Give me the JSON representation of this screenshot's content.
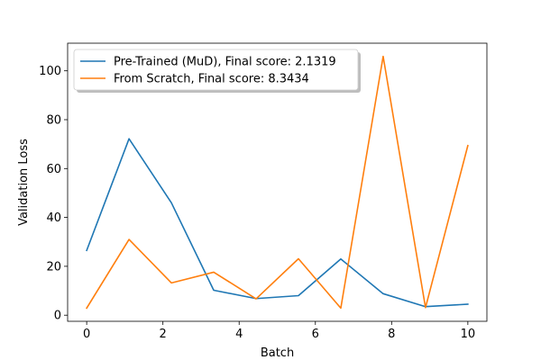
{
  "chart_data": {
    "type": "line",
    "title": "",
    "xlabel": "Batch",
    "ylabel": "Validation Loss",
    "xlim": [
      -0.5,
      10.5
    ],
    "ylim": [
      -2.5,
      111.3
    ],
    "xticks": [
      0,
      2,
      4,
      6,
      8,
      10
    ],
    "yticks": [
      0,
      20,
      40,
      60,
      80,
      100
    ],
    "xtick_labels": [
      "0",
      "2",
      "4",
      "6",
      "8",
      "10"
    ],
    "ytick_labels": [
      "0",
      "20",
      "40",
      "60",
      "80",
      "100"
    ],
    "grid": false,
    "legend_position": "top-left",
    "x": [
      0,
      1.111,
      2.222,
      3.333,
      4.444,
      5.556,
      6.667,
      7.778,
      8.889,
      10
    ],
    "series": [
      {
        "name": "Pre-Trained (MuD), Final score: 2.1319",
        "color": "#1f77b4",
        "values": [
          26.5,
          72.2,
          46.0,
          10.2,
          6.8,
          8.0,
          23.0,
          8.8,
          3.5,
          4.5
        ]
      },
      {
        "name": "From Scratch, Final score: 8.3434",
        "color": "#ff7f0e",
        "values": [
          2.9,
          31.0,
          13.2,
          17.6,
          6.7,
          23.1,
          2.9,
          105.9,
          3.1,
          69.4
        ]
      }
    ]
  }
}
